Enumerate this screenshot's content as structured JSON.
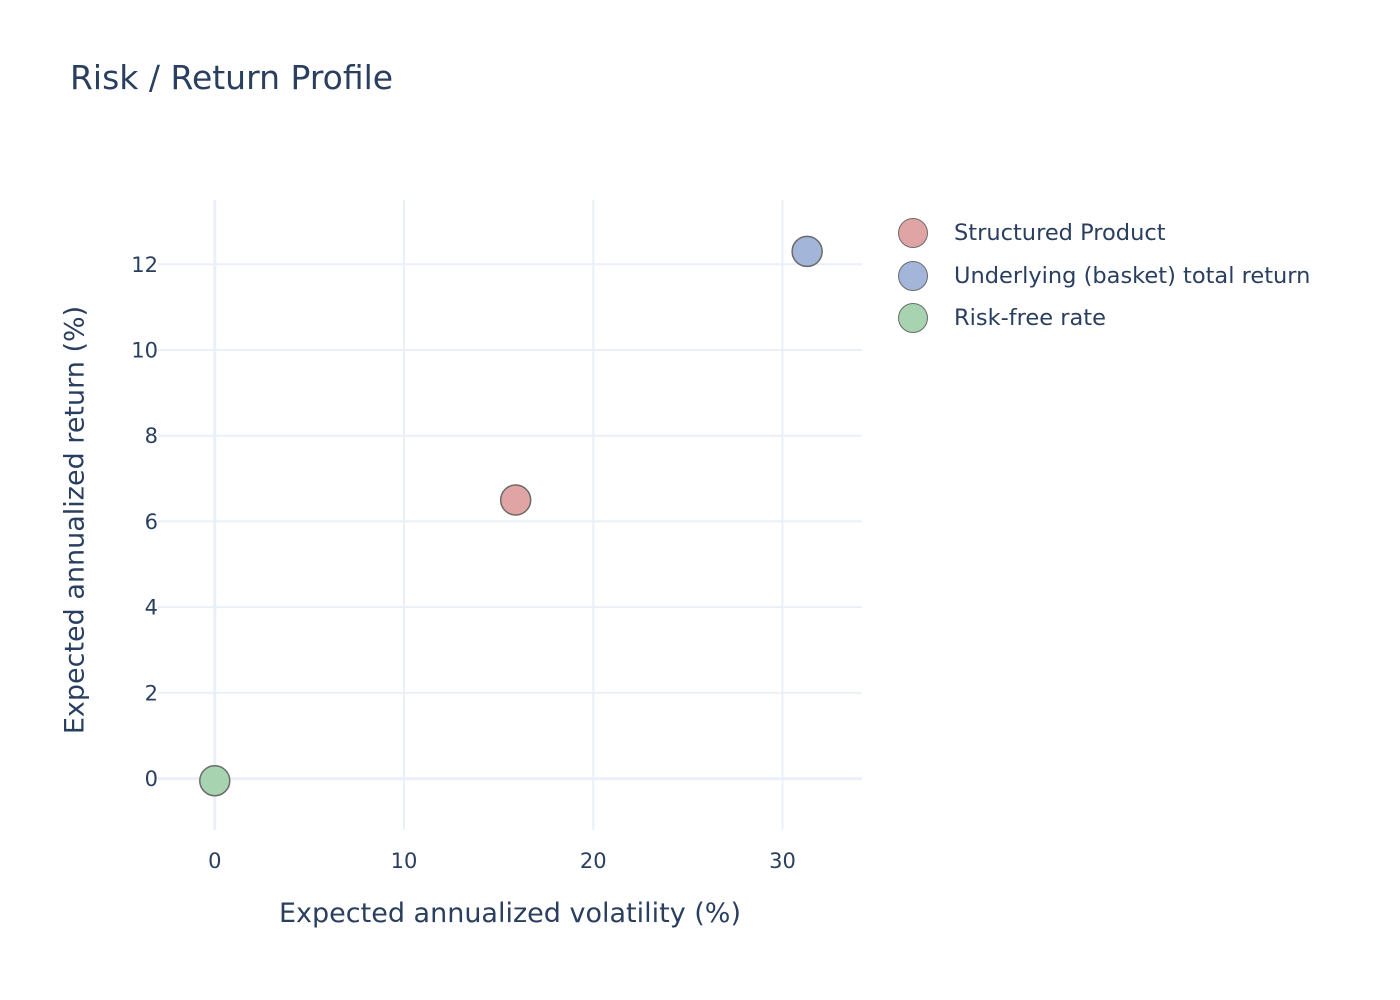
{
  "chart_data": {
    "type": "scatter",
    "title": "Risk / Return Profile",
    "xlabel": "Expected annualized volatility (%)",
    "ylabel": "Expected annualized return (%)",
    "xlim": [
      -3,
      34.2
    ],
    "ylim": [
      -1.2,
      13.5
    ],
    "x_ticks": [
      0,
      10,
      20,
      30
    ],
    "y_ticks": [
      0,
      2,
      4,
      6,
      8,
      10,
      12
    ],
    "grid": true,
    "legend_position": "right",
    "series": [
      {
        "name": "Structured Product",
        "color": "#e0a4a5",
        "x": [
          15.9
        ],
        "y": [
          6.5
        ]
      },
      {
        "name": "Underlying (basket) total return",
        "color": "#a3b5d8",
        "x": [
          31.3
        ],
        "y": [
          12.3
        ]
      },
      {
        "name": "Risk-free rate",
        "color": "#a7d3b0",
        "x": [
          0.0
        ],
        "y": [
          -0.05
        ]
      }
    ]
  }
}
